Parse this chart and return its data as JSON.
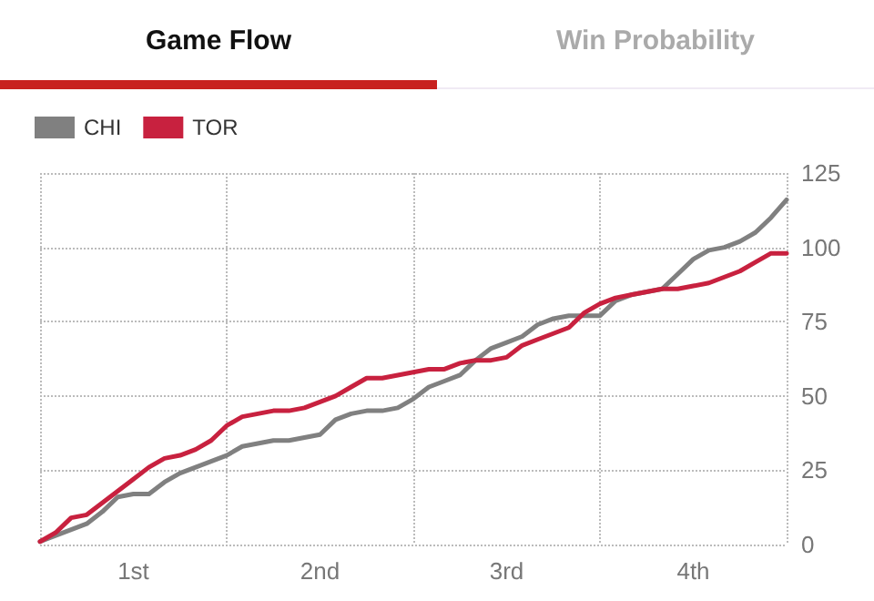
{
  "chart_data": {
    "type": "line",
    "title": "Game Flow",
    "annotations": [
      "Win Probability"
    ],
    "categories": [
      null,
      null,
      null,
      null,
      null,
      null,
      "1st",
      null,
      null,
      null,
      null,
      null,
      null,
      null,
      null,
      null,
      null,
      null,
      "2nd",
      null,
      null,
      null,
      null,
      null,
      null,
      null,
      null,
      null,
      null,
      null,
      "3rd",
      null,
      null,
      null,
      null,
      null,
      null,
      null,
      null,
      null,
      null,
      null,
      "4th",
      null,
      null,
      null,
      null,
      null,
      null
    ],
    "ylim": [
      0,
      125
    ],
    "yticks": [
      0,
      25,
      50,
      75,
      100,
      125
    ],
    "grid": true,
    "legend": "top left",
    "marker": "none",
    "line_style": "solid",
    "series": [
      {
        "name": "CHI",
        "color": "#808080",
        "values": [
          1,
          3,
          5,
          7,
          11,
          16,
          17,
          17,
          21,
          24,
          26,
          28,
          30,
          33,
          34,
          35,
          35,
          36,
          37,
          42,
          44,
          45,
          45,
          46,
          49,
          53,
          55,
          57,
          62,
          66,
          68,
          70,
          74,
          76,
          77,
          77,
          77,
          82,
          84,
          85,
          86,
          91,
          96,
          99,
          100,
          102,
          105,
          110,
          116
        ]
      },
      {
        "name": "TOR",
        "color": "#c8213f",
        "values": [
          1,
          4,
          9,
          10,
          14,
          18,
          22,
          26,
          29,
          30,
          32,
          35,
          40,
          43,
          44,
          45,
          45,
          46,
          48,
          50,
          53,
          56,
          56,
          57,
          58,
          59,
          59,
          61,
          62,
          62,
          63,
          67,
          69,
          71,
          73,
          78,
          81,
          83,
          84,
          85,
          86,
          86,
          87,
          88,
          90,
          92,
          95,
          98,
          98
        ]
      }
    ]
  }
}
